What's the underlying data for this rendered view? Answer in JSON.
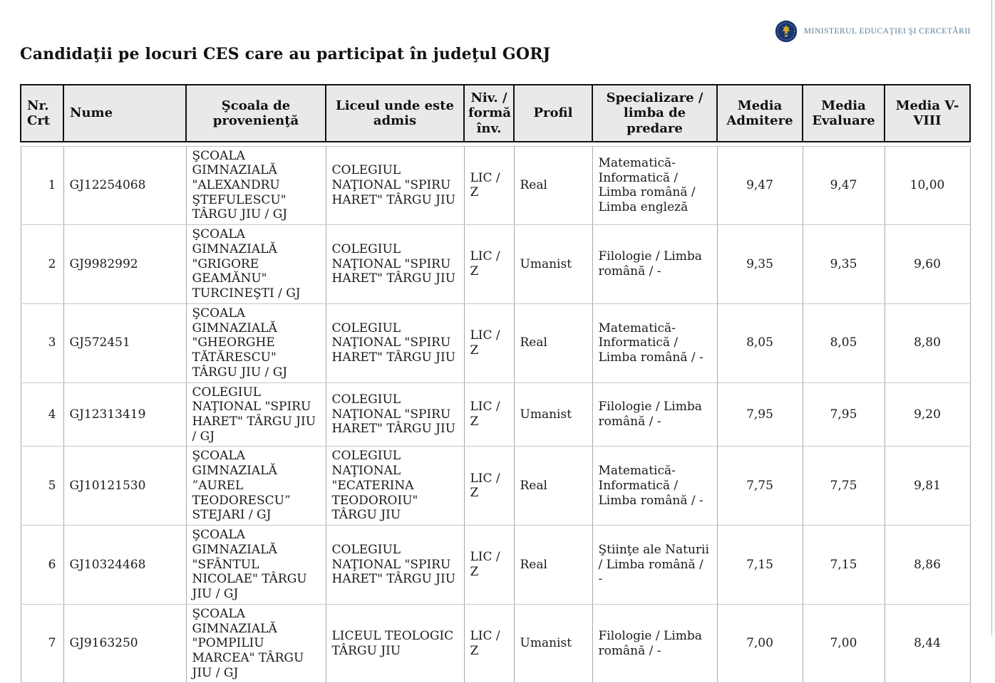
{
  "brand": {
    "logo_navy": "#18356e",
    "logo_gold": "#d9a72c",
    "ministry_text_color": "#5b7d96"
  },
  "header": {
    "ministry_label": "Ministerul Educaţiei şi Cercetării",
    "page_title": "Candidaţii pe locuri CES care au participat în judeţul GORJ"
  },
  "table": {
    "columns": [
      {
        "key": "nr",
        "label": "Nr. Crt"
      },
      {
        "key": "nume",
        "label": "Nume"
      },
      {
        "key": "scoala",
        "label": "Şcoala de provenienţă"
      },
      {
        "key": "liceu",
        "label": "Liceul unde este admis"
      },
      {
        "key": "niv",
        "label": "Niv. / formă înv."
      },
      {
        "key": "profil",
        "label": "Profil"
      },
      {
        "key": "specializare",
        "label": "Specializare / limba de predare"
      },
      {
        "key": "media_admitere",
        "label": "Media Admitere"
      },
      {
        "key": "media_evaluare",
        "label": "Media Evaluare"
      },
      {
        "key": "media_v_viii",
        "label": "Media V-VIII"
      }
    ],
    "rows": [
      {
        "nr": "1",
        "nume": "GJ12254068",
        "scoala": "ŞCOALA GIMNAZIALĂ \"ALEXANDRU ŞTEFULESCU\" TÂRGU JIU / GJ",
        "liceu": "COLEGIUL NAŢIONAL \"SPIRU HARET\" TÂRGU JIU",
        "niv": "LIC / Z",
        "profil": "Real",
        "specializare": "Matematică-Informatică / Limba română / Limba engleză",
        "media_admitere": "9,47",
        "media_evaluare": "9,47",
        "media_v_viii": "10,00"
      },
      {
        "nr": "2",
        "nume": "GJ9982992",
        "scoala": "ŞCOALA GIMNAZIALĂ \"GRIGORE GEAMĂNU\" TURCINEŞTI / GJ",
        "liceu": "COLEGIUL NAŢIONAL \"SPIRU HARET\" TÂRGU JIU",
        "niv": "LIC / Z",
        "profil": "Umanist",
        "specializare": "Filologie / Limba română / -",
        "media_admitere": "9,35",
        "media_evaluare": "9,35",
        "media_v_viii": "9,60"
      },
      {
        "nr": "3",
        "nume": "GJ572451",
        "scoala": "ŞCOALA GIMNAZIALĂ \"GHEORGHE TĂTĂRESCU\" TÂRGU JIU / GJ",
        "liceu": "COLEGIUL NAŢIONAL \"SPIRU HARET\" TÂRGU JIU",
        "niv": "LIC / Z",
        "profil": "Real",
        "specializare": "Matematică-Informatică / Limba română / -",
        "media_admitere": "8,05",
        "media_evaluare": "8,05",
        "media_v_viii": "8,80"
      },
      {
        "nr": "4",
        "nume": "GJ12313419",
        "scoala": "COLEGIUL NAŢIONAL \"SPIRU HARET\" TÂRGU JIU / GJ",
        "liceu": "COLEGIUL NAŢIONAL \"SPIRU HARET\" TÂRGU JIU",
        "niv": "LIC / Z",
        "profil": "Umanist",
        "specializare": "Filologie / Limba română / -",
        "media_admitere": "7,95",
        "media_evaluare": "7,95",
        "media_v_viii": "9,20"
      },
      {
        "nr": "5",
        "nume": "GJ10121530",
        "scoala": "ŞCOALA GIMNAZIALĂ ”AUREL TEODORESCU” STEJARI / GJ",
        "liceu": "COLEGIUL NAŢIONAL \"ECATERINA TEODOROIU\" TÂRGU JIU",
        "niv": "LIC / Z",
        "profil": "Real",
        "specializare": "Matematică-Informatică / Limba română / -",
        "media_admitere": "7,75",
        "media_evaluare": "7,75",
        "media_v_viii": "9,81"
      },
      {
        "nr": "6",
        "nume": "GJ10324468",
        "scoala": "ŞCOALA GIMNAZIALĂ \"SFÂNTUL NICOLAE\" TÂRGU JIU / GJ",
        "liceu": "COLEGIUL NAŢIONAL \"SPIRU HARET\" TÂRGU JIU",
        "niv": "LIC / Z",
        "profil": "Real",
        "specializare": "Ştiinţe ale Naturii / Limba română / -",
        "media_admitere": "7,15",
        "media_evaluare": "7,15",
        "media_v_viii": "8,86"
      },
      {
        "nr": "7",
        "nume": "GJ9163250",
        "scoala": "ŞCOALA GIMNAZIALĂ \"POMPILIU MARCEA\" TÂRGU JIU / GJ",
        "liceu": "LICEUL TEOLOGIC TÂRGU JIU",
        "niv": "LIC / Z",
        "profil": "Umanist",
        "specializare": "Filologie / Limba română / -",
        "media_admitere": "7,00",
        "media_evaluare": "7,00",
        "media_v_viii": "8,44"
      }
    ]
  }
}
